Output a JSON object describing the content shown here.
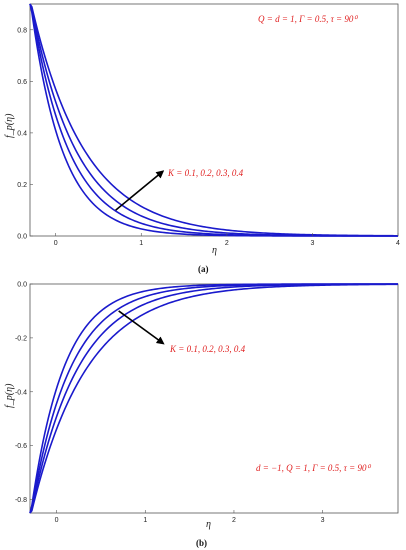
{
  "chart_data": [
    {
      "type": "line",
      "caption": "(a)",
      "xlabel": "η",
      "ylabel": "f_p(η)",
      "xlim": [
        -0.3,
        4.0
      ],
      "ylim": [
        0.0,
        0.9
      ],
      "xticks": [
        "0",
        "1",
        "2",
        "3",
        "4"
      ],
      "yticks": [
        "0.0",
        "0.2",
        "0.4",
        "0.6",
        "0.8"
      ],
      "params_label": "Q = d = 1, Γ = 0.5, τ = 90⁰",
      "arrow_label": "K = 0.1, 0.2, 0.3, 0.4",
      "arrow": {
        "from": [
          0.7,
          0.1
        ],
        "to": [
          1.25,
          0.25
        ]
      },
      "series": [
        {
          "y0": 0.92,
          "decay": 2.7,
          "x": [
            -0.3,
            0,
            0.5,
            1,
            1.5,
            2,
            2.5,
            3,
            3.5,
            4
          ]
        },
        {
          "y0": 0.92,
          "decay": 2.25
        },
        {
          "y0": 0.92,
          "decay": 1.9
        },
        {
          "y0": 0.92,
          "decay": 1.6
        }
      ]
    },
    {
      "type": "line",
      "caption": "(b)",
      "xlabel": "η",
      "ylabel": "f_p(η)",
      "xlim": [
        -0.3,
        3.85
      ],
      "ylim": [
        -0.85,
        0.0
      ],
      "xticks": [
        "0",
        "1",
        "2",
        "3"
      ],
      "yticks": [
        "0.0",
        "-0.2",
        "-0.4",
        "-0.6",
        "-0.8"
      ],
      "params_label": "d = −1, Q = 1, Γ = 0.5, τ = 90⁰",
      "arrow_label": "K = 0.1, 0.2, 0.3, 0.4",
      "arrow": {
        "from": [
          0.7,
          -0.1
        ],
        "to": [
          1.2,
          -0.22
        ]
      },
      "series": [
        {
          "y0": -0.87,
          "decay": 2.7
        },
        {
          "y0": -0.87,
          "decay": 2.25
        },
        {
          "y0": -0.87,
          "decay": 1.9
        },
        {
          "y0": -0.87,
          "decay": 1.6
        }
      ]
    }
  ]
}
